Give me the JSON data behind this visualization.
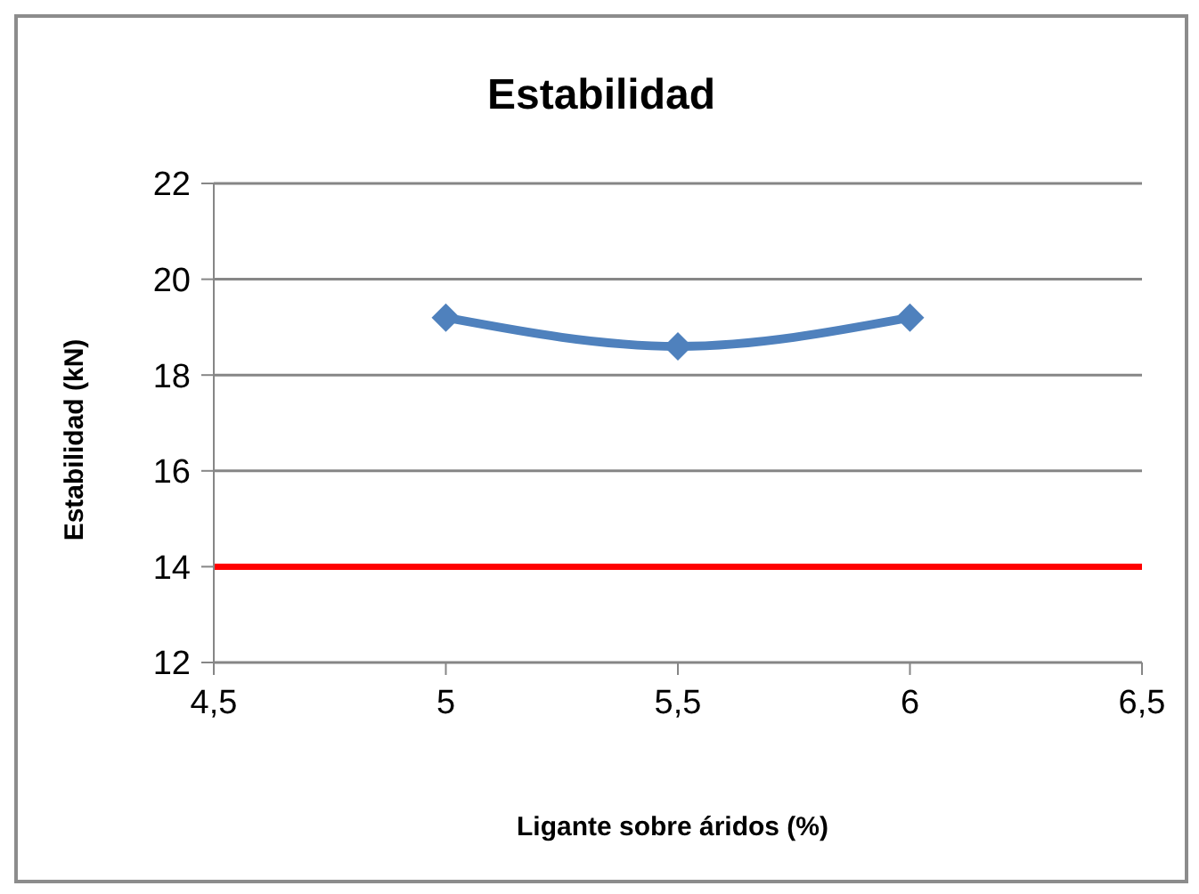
{
  "chart_data": {
    "type": "line",
    "title": "Estabilidad",
    "xlabel": "Ligante sobre áridos (%)",
    "ylabel": "Estabilidad (kN)",
    "x": [
      5,
      5.5,
      6
    ],
    "series": [
      {
        "color": "#4f81bd",
        "values": [
          19.2,
          18.6,
          19.2
        ]
      }
    ],
    "xlim": [
      4.5,
      6.5
    ],
    "xticks": [
      {
        "value": 4.5,
        "label": "4,5"
      },
      5,
      {
        "value": 5.5,
        "label": "5,5"
      },
      6,
      {
        "value": 6.5,
        "label": "6,5"
      }
    ],
    "ylim": [
      12,
      22
    ],
    "yticks": [
      12,
      14,
      16,
      18,
      20,
      22
    ],
    "ref_lines": [
      {
        "axis": "y",
        "value": 14,
        "color": "#ff0000"
      }
    ],
    "grid": "y",
    "legend": false,
    "marker": "diamond",
    "line_style": "solid"
  }
}
